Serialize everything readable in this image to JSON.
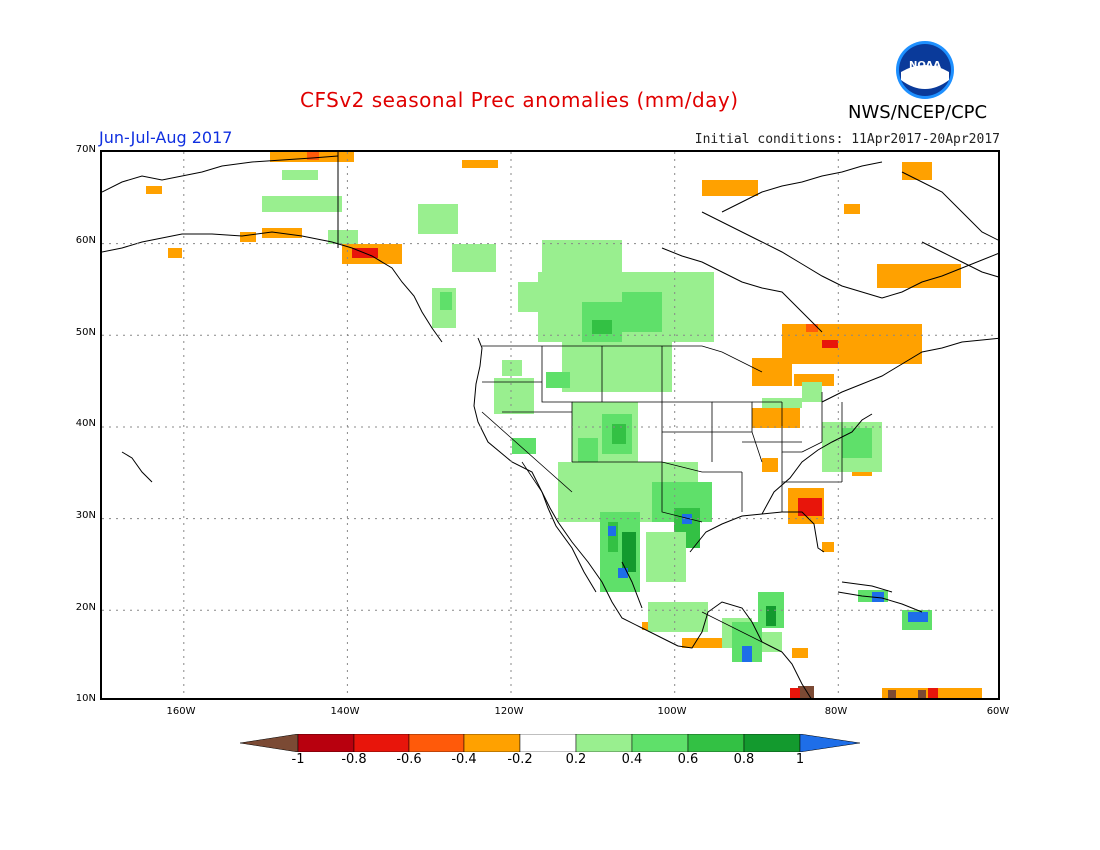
{
  "title": "CFSv2 seasonal Prec anomalies (mm/day)",
  "period": "Jun-Jul-Aug 2017",
  "initial_conditions": "Initial conditions: 11Apr2017-20Apr2017",
  "agency": "NWS/NCEP/CPC",
  "logo_text": "NOAA",
  "map": {
    "lat_labels": [
      "70N",
      "60N",
      "50N",
      "40N",
      "30N",
      "20N",
      "10N"
    ],
    "lon_labels": [
      "160W",
      "140W",
      "120W",
      "100W",
      "80W",
      "60W"
    ]
  },
  "legend": {
    "labels": [
      "-1",
      "-0.8",
      "-0.6",
      "-0.4",
      "-0.2",
      "0.2",
      "0.4",
      "0.6",
      "0.8",
      "1"
    ],
    "colors": {
      "below_min": "#7b4a34",
      "n08": "#b8000e",
      "n06": "#e8150b",
      "n04": "#ff5a0a",
      "n02": "#ffa100",
      "zero": "#ffffff",
      "p02": "#99ef8f",
      "p04": "#5fe06a",
      "p06": "#33c144",
      "p08": "#139a2e",
      "above_max": "#1e6ee8"
    }
  }
}
